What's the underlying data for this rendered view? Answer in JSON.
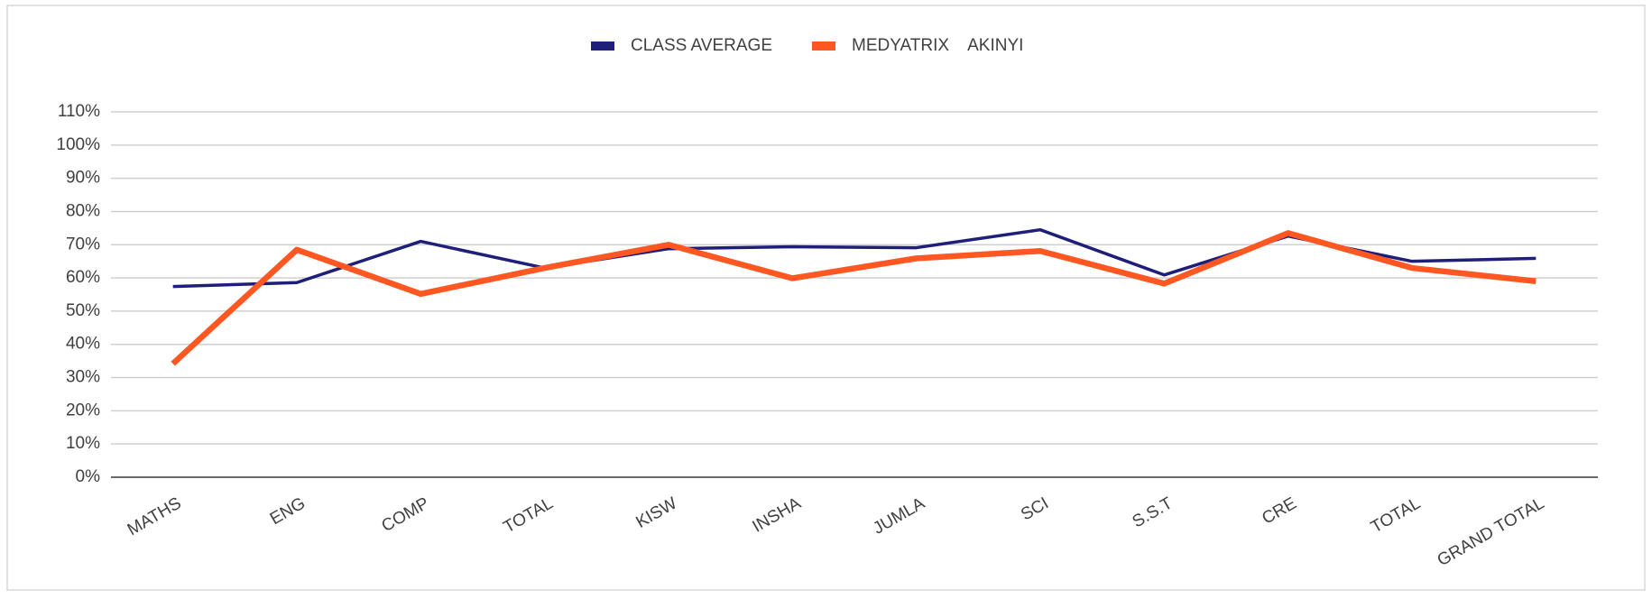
{
  "chart_data": {
    "type": "line",
    "categories": [
      "MATHS",
      "ENG",
      "COMP",
      "TOTAL",
      "KISW",
      "INSHA",
      "JUMLA",
      "SCI",
      "S.S.T",
      "CRE",
      "TOTAL",
      "GRAND TOTAL"
    ],
    "series": [
      {
        "name": "CLASS AVERAGE",
        "color": "#1f1f7a",
        "values": [
          57.4,
          58.6,
          71,
          63,
          68.8,
          69.4,
          69.1,
          74.5,
          60.9,
          72.6,
          65,
          65.9
        ]
      },
      {
        "name": "MEDYATRIX    AKINYI",
        "color": "#ff5722",
        "values": [
          34.2,
          68.5,
          55.2,
          63,
          70,
          59.9,
          65.9,
          68.1,
          58.3,
          73.5,
          63,
          59
        ]
      }
    ],
    "ylim": [
      0,
      110
    ],
    "yticks": [
      {
        "value": 0,
        "label": "0%"
      },
      {
        "value": 10,
        "label": "10%"
      },
      {
        "value": 20,
        "label": "20%"
      },
      {
        "value": 30,
        "label": "30%"
      },
      {
        "value": 40,
        "label": "40%"
      },
      {
        "value": 50,
        "label": "50%"
      },
      {
        "value": 60,
        "label": "60%"
      },
      {
        "value": 70,
        "label": "70%"
      },
      {
        "value": 80,
        "label": "80%"
      },
      {
        "value": 90,
        "label": "90%"
      },
      {
        "value": 100,
        "label": "100%"
      },
      {
        "value": 110,
        "label": "110%"
      }
    ],
    "grid": true,
    "legend": "top"
  }
}
